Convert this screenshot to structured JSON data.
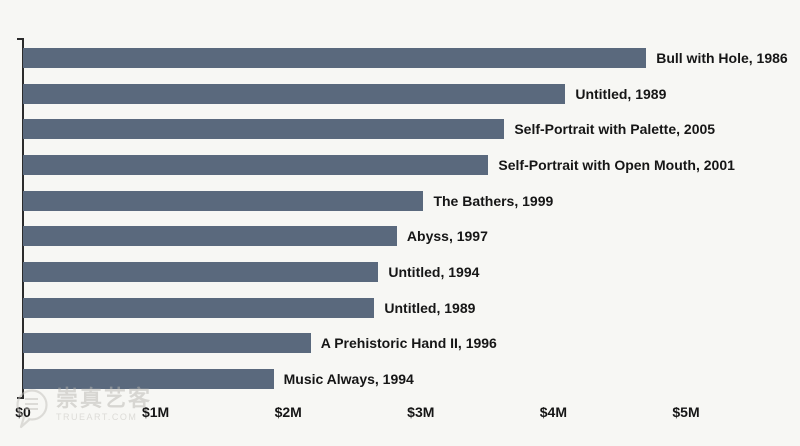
{
  "chart_data": {
    "type": "bar",
    "orientation": "horizontal",
    "title": "",
    "unit": "USD millions",
    "items": [
      {
        "label": "Bull with Hole, 1986",
        "value": 4.7
      },
      {
        "label": "Untitled, 1989",
        "value": 4.09
      },
      {
        "label": "Self-Portrait with Palette, 2005",
        "value": 3.63
      },
      {
        "label": "Self-Portrait with Open Mouth, 2001",
        "value": 3.51
      },
      {
        "label": "The Bathers, 1999",
        "value": 3.02
      },
      {
        "label": "Abyss, 1997",
        "value": 2.82
      },
      {
        "label": "Untitled, 1994",
        "value": 2.68
      },
      {
        "label": "Untitled, 1989",
        "value": 2.65
      },
      {
        "label": "A Prehistoric Hand II, 1996",
        "value": 2.17
      },
      {
        "label": "Music Always, 1994",
        "value": 1.89
      }
    ],
    "x_axis": {
      "ticks": [
        {
          "label": "$0",
          "value": 0
        },
        {
          "label": "$1M",
          "value": 1
        },
        {
          "label": "$2M",
          "value": 2
        },
        {
          "label": "$3M",
          "value": 3
        },
        {
          "label": "$4M",
          "value": 4
        },
        {
          "label": "$5M",
          "value": 5
        }
      ],
      "min": 0,
      "max": 5
    },
    "grid": "off",
    "legend": "none",
    "colors": {
      "bar": "#5a697d",
      "background": "#f7f7f4",
      "text": "#161616",
      "axis": "#2b2b2b",
      "watermark": "#bdbbb6"
    }
  },
  "watermark": {
    "icon": "speech-bubble-document-icon",
    "name": "崇真艺客",
    "site": "TRUEART.COM"
  }
}
